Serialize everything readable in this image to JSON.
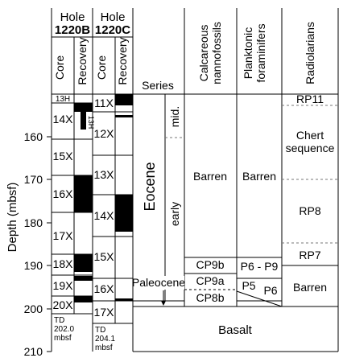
{
  "axis": {
    "label": "Depth (mbsf)",
    "ticks": [
      "160",
      "170",
      "180",
      "190",
      "200",
      "210"
    ]
  },
  "columns": {
    "hole_b_title": [
      "Hole",
      "1220B"
    ],
    "hole_c_title": [
      "Hole",
      "1220C"
    ],
    "core": "Core",
    "recovery": "Recovery",
    "series": "Series",
    "calc": [
      "Calcareous",
      "nannofossils"
    ],
    "plank": [
      "Planktonic",
      "foraminifers"
    ],
    "radio": "Radiolarians"
  },
  "cores_b": [
    "13H",
    "14X",
    "15X",
    "16X",
    "17X",
    "18X",
    "19X",
    "20X"
  ],
  "cores_c": [
    "11X",
    "12X",
    "13X",
    "14X",
    "15X",
    "16X",
    "17X"
  ],
  "recovery_b_mini_label": "13H",
  "td_b": [
    "TD",
    "202.0",
    "mbsf"
  ],
  "td_c": [
    "TD",
    "204.1",
    "mbsf"
  ],
  "series": {
    "eocene": "Eocene",
    "mid": "mid.",
    "early": "early",
    "paleocene": "Paleocene"
  },
  "nanno": {
    "barren": "Barren",
    "cp9b": "CP9b",
    "cp9a": "CP9a",
    "cp8b": "CP8b"
  },
  "foram": {
    "barren": "Barren",
    "p6p9": "P6 - P9",
    "p5": "P5",
    "p6": "P6"
  },
  "radiolarians": {
    "rp11": "RP11",
    "chert1": "Chert",
    "chert2": "sequence",
    "rp8": "RP8",
    "rp7": "RP7",
    "barren": "Barren"
  },
  "basalt": "Basalt"
}
